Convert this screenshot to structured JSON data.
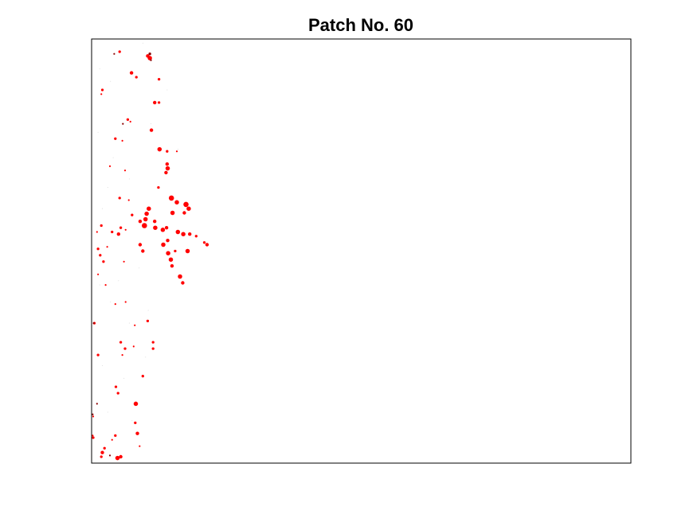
{
  "chart_data": {
    "type": "scatter",
    "title": "Patch No. 60",
    "xlabel": "",
    "ylabel": "",
    "axes_ticks": false,
    "grid": false,
    "legend": "none",
    "colors": {
      "primary": "#ff0000",
      "dark": "#8b0000",
      "frame": "#000000",
      "background": "#ffffff"
    },
    "xlim": [
      0,
      1
    ],
    "ylim": [
      0,
      1
    ],
    "series": [
      {
        "color": "#ff0000",
        "points": [
          {
            "x": 0.052,
            "y": 0.97,
            "s": 3
          },
          {
            "x": 0.104,
            "y": 0.96,
            "s": 4
          },
          {
            "x": 0.108,
            "y": 0.955,
            "s": 5
          },
          {
            "x": 0.074,
            "y": 0.92,
            "s": 4
          },
          {
            "x": 0.083,
            "y": 0.91,
            "s": 3
          },
          {
            "x": 0.125,
            "y": 0.905,
            "s": 3
          },
          {
            "x": 0.02,
            "y": 0.88,
            "s": 3
          },
          {
            "x": 0.018,
            "y": 0.87,
            "s": 2
          },
          {
            "x": 0.117,
            "y": 0.85,
            "s": 4
          },
          {
            "x": 0.125,
            "y": 0.85,
            "s": 3
          },
          {
            "x": 0.067,
            "y": 0.81,
            "s": 3
          },
          {
            "x": 0.072,
            "y": 0.805,
            "s": 2
          },
          {
            "x": 0.111,
            "y": 0.785,
            "s": 4
          },
          {
            "x": 0.044,
            "y": 0.765,
            "s": 3
          },
          {
            "x": 0.057,
            "y": 0.76,
            "s": 2
          },
          {
            "x": 0.126,
            "y": 0.74,
            "s": 5
          },
          {
            "x": 0.14,
            "y": 0.735,
            "s": 3
          },
          {
            "x": 0.14,
            "y": 0.705,
            "s": 4
          },
          {
            "x": 0.141,
            "y": 0.695,
            "s": 5
          },
          {
            "x": 0.138,
            "y": 0.685,
            "s": 4
          },
          {
            "x": 0.124,
            "y": 0.65,
            "s": 3
          },
          {
            "x": 0.052,
            "y": 0.625,
            "s": 3
          },
          {
            "x": 0.069,
            "y": 0.62,
            "s": 2
          },
          {
            "x": 0.148,
            "y": 0.625,
            "s": 6
          },
          {
            "x": 0.158,
            "y": 0.615,
            "s": 5
          },
          {
            "x": 0.175,
            "y": 0.61,
            "s": 6
          },
          {
            "x": 0.18,
            "y": 0.6,
            "s": 5
          },
          {
            "x": 0.172,
            "y": 0.59,
            "s": 4
          },
          {
            "x": 0.15,
            "y": 0.59,
            "s": 5
          },
          {
            "x": 0.106,
            "y": 0.6,
            "s": 5
          },
          {
            "x": 0.102,
            "y": 0.588,
            "s": 5
          },
          {
            "x": 0.1,
            "y": 0.575,
            "s": 5
          },
          {
            "x": 0.098,
            "y": 0.56,
            "s": 6
          },
          {
            "x": 0.09,
            "y": 0.57,
            "s": 4
          },
          {
            "x": 0.075,
            "y": 0.585,
            "s": 3
          },
          {
            "x": 0.117,
            "y": 0.57,
            "s": 4
          },
          {
            "x": 0.118,
            "y": 0.555,
            "s": 5
          },
          {
            "x": 0.132,
            "y": 0.55,
            "s": 5
          },
          {
            "x": 0.139,
            "y": 0.555,
            "s": 4
          },
          {
            "x": 0.16,
            "y": 0.545,
            "s": 5
          },
          {
            "x": 0.17,
            "y": 0.54,
            "s": 5
          },
          {
            "x": 0.182,
            "y": 0.54,
            "s": 4
          },
          {
            "x": 0.194,
            "y": 0.535,
            "s": 3
          },
          {
            "x": 0.214,
            "y": 0.515,
            "s": 4
          },
          {
            "x": 0.209,
            "y": 0.52,
            "s": 3
          },
          {
            "x": 0.05,
            "y": 0.54,
            "s": 4
          },
          {
            "x": 0.054,
            "y": 0.555,
            "s": 3
          },
          {
            "x": 0.038,
            "y": 0.545,
            "s": 3
          },
          {
            "x": 0.018,
            "y": 0.56,
            "s": 3
          },
          {
            "x": 0.01,
            "y": 0.545,
            "s": 2
          },
          {
            "x": 0.09,
            "y": 0.515,
            "s": 4
          },
          {
            "x": 0.095,
            "y": 0.5,
            "s": 4
          },
          {
            "x": 0.133,
            "y": 0.515,
            "s": 5
          },
          {
            "x": 0.141,
            "y": 0.525,
            "s": 4
          },
          {
            "x": 0.142,
            "y": 0.495,
            "s": 5
          },
          {
            "x": 0.147,
            "y": 0.48,
            "s": 5
          },
          {
            "x": 0.149,
            "y": 0.465,
            "s": 4
          },
          {
            "x": 0.178,
            "y": 0.5,
            "s": 5
          },
          {
            "x": 0.155,
            "y": 0.5,
            "s": 3
          },
          {
            "x": 0.012,
            "y": 0.505,
            "s": 3
          },
          {
            "x": 0.016,
            "y": 0.49,
            "s": 3
          },
          {
            "x": 0.022,
            "y": 0.475,
            "s": 3
          },
          {
            "x": 0.06,
            "y": 0.475,
            "s": 2
          },
          {
            "x": 0.012,
            "y": 0.445,
            "s": 2
          },
          {
            "x": 0.026,
            "y": 0.42,
            "s": 2
          },
          {
            "x": 0.164,
            "y": 0.44,
            "s": 5
          },
          {
            "x": 0.169,
            "y": 0.425,
            "s": 4
          },
          {
            "x": 0.044,
            "y": 0.375,
            "s": 2
          },
          {
            "x": 0.063,
            "y": 0.38,
            "s": 2
          },
          {
            "x": 0.104,
            "y": 0.335,
            "s": 3
          },
          {
            "x": 0.08,
            "y": 0.325,
            "s": 2
          },
          {
            "x": 0.054,
            "y": 0.285,
            "s": 3
          },
          {
            "x": 0.062,
            "y": 0.27,
            "s": 3
          },
          {
            "x": 0.078,
            "y": 0.275,
            "s": 2
          },
          {
            "x": 0.114,
            "y": 0.285,
            "s": 3
          },
          {
            "x": 0.114,
            "y": 0.27,
            "s": 3
          },
          {
            "x": 0.005,
            "y": 0.33,
            "s": 3
          },
          {
            "x": 0.012,
            "y": 0.255,
            "s": 3
          },
          {
            "x": 0.057,
            "y": 0.255,
            "s": 2
          },
          {
            "x": 0.095,
            "y": 0.205,
            "s": 3
          },
          {
            "x": 0.045,
            "y": 0.18,
            "s": 3
          },
          {
            "x": 0.049,
            "y": 0.165,
            "s": 3
          },
          {
            "x": 0.082,
            "y": 0.14,
            "s": 5
          },
          {
            "x": 0.081,
            "y": 0.095,
            "s": 3
          },
          {
            "x": 0.044,
            "y": 0.065,
            "s": 3
          },
          {
            "x": 0.038,
            "y": 0.055,
            "s": 2
          },
          {
            "x": 0.085,
            "y": 0.07,
            "s": 4
          },
          {
            "x": 0.089,
            "y": 0.04,
            "s": 2
          },
          {
            "x": 0.02,
            "y": 0.025,
            "s": 4
          },
          {
            "x": 0.024,
            "y": 0.035,
            "s": 3
          },
          {
            "x": 0.018,
            "y": 0.015,
            "s": 3
          },
          {
            "x": 0.048,
            "y": 0.012,
            "s": 5
          },
          {
            "x": 0.054,
            "y": 0.015,
            "s": 4
          },
          {
            "x": 0.003,
            "y": 0.06,
            "s": 3
          },
          {
            "x": 0.003,
            "y": 0.11,
            "s": 2
          },
          {
            "x": 0.002,
            "y": 0.065,
            "s": 2
          },
          {
            "x": 0.063,
            "y": 0.55,
            "s": 2
          },
          {
            "x": 0.029,
            "y": 0.51,
            "s": 2
          },
          {
            "x": 0.062,
            "y": 0.69,
            "s": 2
          },
          {
            "x": 0.034,
            "y": 0.7,
            "s": 2
          },
          {
            "x": 0.158,
            "y": 0.735,
            "s": 2
          }
        ]
      },
      {
        "color": "#8b0000",
        "points": [
          {
            "x": 0.108,
            "y": 0.965,
            "s": 3
          },
          {
            "x": 0.11,
            "y": 0.95,
            "s": 2
          },
          {
            "x": 0.004,
            "y": 0.33,
            "s": 2
          },
          {
            "x": 0.002,
            "y": 0.115,
            "s": 2
          },
          {
            "x": 0.042,
            "y": 0.965,
            "s": 2
          },
          {
            "x": 0.058,
            "y": 0.8,
            "s": 2
          },
          {
            "x": 0.01,
            "y": 0.14,
            "s": 2
          },
          {
            "x": 0.034,
            "y": 0.018,
            "s": 2
          }
        ]
      },
      {
        "color": "#dddddd",
        "points": [
          {
            "x": 0.015,
            "y": 0.93,
            "s": 1
          },
          {
            "x": 0.035,
            "y": 0.9,
            "s": 1
          },
          {
            "x": 0.012,
            "y": 0.78,
            "s": 1
          },
          {
            "x": 0.04,
            "y": 0.72,
            "s": 1
          },
          {
            "x": 0.03,
            "y": 0.65,
            "s": 1
          },
          {
            "x": 0.02,
            "y": 0.6,
            "s": 1
          },
          {
            "x": 0.07,
            "y": 0.67,
            "s": 1
          },
          {
            "x": 0.11,
            "y": 0.8,
            "s": 1
          },
          {
            "x": 0.16,
            "y": 0.74,
            "s": 1
          },
          {
            "x": 0.05,
            "y": 0.43,
            "s": 1
          },
          {
            "x": 0.035,
            "y": 0.38,
            "s": 1
          },
          {
            "x": 0.07,
            "y": 0.33,
            "s": 1
          },
          {
            "x": 0.105,
            "y": 0.36,
            "s": 1
          },
          {
            "x": 0.02,
            "y": 0.23,
            "s": 1
          },
          {
            "x": 0.06,
            "y": 0.2,
            "s": 1
          },
          {
            "x": 0.03,
            "y": 0.12,
            "s": 1
          },
          {
            "x": 0.075,
            "y": 0.1,
            "s": 1
          },
          {
            "x": 0.1,
            "y": 0.25,
            "s": 1
          },
          {
            "x": 0.015,
            "y": 0.42,
            "s": 1
          },
          {
            "x": 0.088,
            "y": 0.46,
            "s": 1
          },
          {
            "x": 0.14,
            "y": 0.88,
            "s": 1
          },
          {
            "x": 0.095,
            "y": 0.99,
            "s": 1
          }
        ]
      }
    ]
  }
}
